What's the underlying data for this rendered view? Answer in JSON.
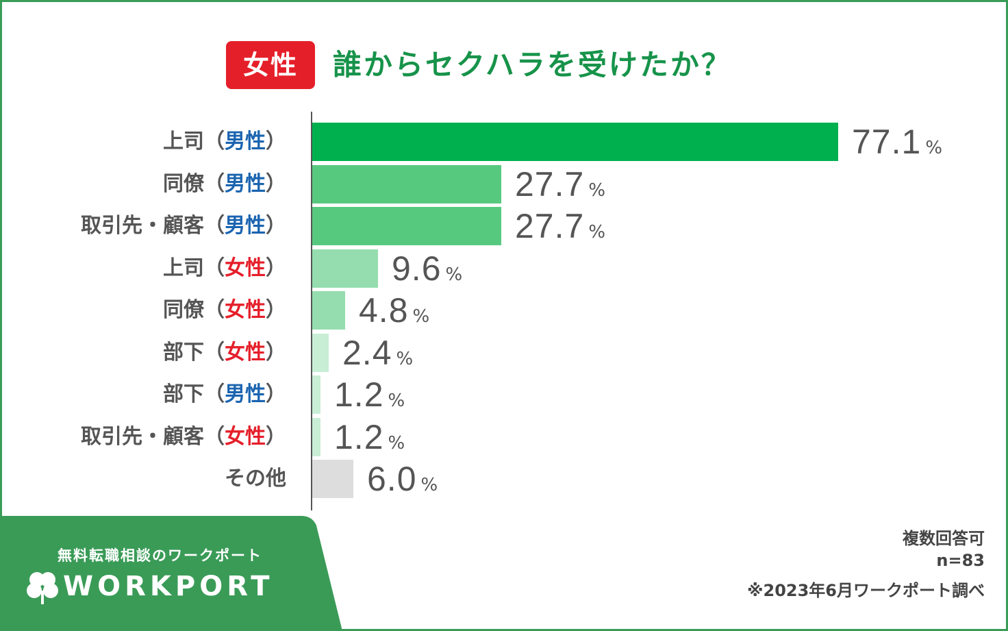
{
  "header": {
    "badge": "女性",
    "title": "誰からセクハラを受けたか？"
  },
  "colors": {
    "title_green": "#17934a",
    "badge_red": "#e51f2a",
    "male_blue": "#1b64b0",
    "female_red": "#e51f2a",
    "frame_green": "#3a9b57"
  },
  "chart_data": {
    "type": "bar",
    "orientation": "horizontal",
    "title": "誰からセクハラを受けたか？",
    "unit": "%",
    "categories": [
      "上司（男性）",
      "同僚（男性）",
      "取引先・顧客（男性）",
      "上司（女性）",
      "同僚（女性）",
      "部下（女性）",
      "部下（男性）",
      "取引先・顧客（女性）",
      "その他"
    ],
    "values": [
      77.1,
      27.7,
      27.7,
      9.6,
      4.8,
      2.4,
      1.2,
      1.2,
      6.0
    ],
    "value_labels": [
      "77.1",
      "27.7",
      "27.7",
      "9.6",
      "4.8",
      "2.4",
      "1.2",
      "1.2",
      "6.0"
    ],
    "label_parts": [
      {
        "role": "上司",
        "open": "（",
        "gender": "男性",
        "gender_type": "m",
        "close": "）"
      },
      {
        "role": "同僚",
        "open": "（",
        "gender": "男性",
        "gender_type": "m",
        "close": "）"
      },
      {
        "role": "取引先・顧客",
        "open": "（",
        "gender": "男性",
        "gender_type": "m",
        "close": "）"
      },
      {
        "role": "上司",
        "open": "（",
        "gender": "女性",
        "gender_type": "f",
        "close": "）"
      },
      {
        "role": "同僚",
        "open": "（",
        "gender": "女性",
        "gender_type": "f",
        "close": "）"
      },
      {
        "role": "部下",
        "open": "（",
        "gender": "女性",
        "gender_type": "f",
        "close": "）"
      },
      {
        "role": "部下",
        "open": "（",
        "gender": "男性",
        "gender_type": "m",
        "close": "）"
      },
      {
        "role": "取引先・顧客",
        "open": "（",
        "gender": "女性",
        "gender_type": "f",
        "close": "）"
      },
      {
        "role": "その他",
        "open": "",
        "gender": "",
        "gender_type": "",
        "close": ""
      }
    ],
    "bar_colors": [
      "#00b04f",
      "#57c97f",
      "#57c97f",
      "#95ddae",
      "#95ddae",
      "#c8eed6",
      "#c8eed6",
      "#c8eed6",
      "#dddddd"
    ],
    "percent_sign": "%",
    "xlim": [
      0,
      100
    ]
  },
  "notes": {
    "multiple_answers": "複数回答可",
    "sample_size": "n=83",
    "source": "※2023年6月ワークポート調べ"
  },
  "footer": {
    "tagline": "無料転職相談のワークポート",
    "logo_text": "WORKPORT"
  }
}
